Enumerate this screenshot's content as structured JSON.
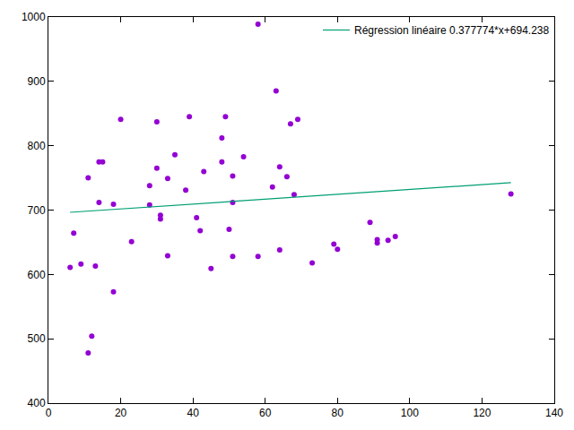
{
  "chart_data": {
    "type": "scatter",
    "xlim": [
      0,
      140
    ],
    "xticks": [
      0,
      20,
      40,
      60,
      80,
      100,
      120,
      140
    ],
    "ylim": [
      400,
      1000
    ],
    "yticks": [
      400,
      500,
      600,
      700,
      800,
      900,
      1000
    ],
    "grid": false,
    "legend": "top-right",
    "series": [
      {
        "type": "scatter",
        "marker": "circle",
        "color": "#9400d3",
        "x": [
          6,
          7,
          9,
          11,
          11,
          12,
          13,
          14,
          14,
          15,
          18,
          18,
          20,
          23,
          28,
          28,
          30,
          30,
          31,
          31,
          33,
          33,
          35,
          38,
          39,
          41,
          42,
          43,
          45,
          48,
          48,
          49,
          50,
          51,
          51,
          51,
          54,
          58,
          58,
          62,
          63,
          64,
          64,
          66,
          67,
          68,
          69,
          73,
          79,
          80,
          89,
          91,
          91,
          94,
          96,
          128
        ],
        "values": [
          611,
          664,
          616,
          750,
          478,
          504,
          613,
          712,
          775,
          775,
          709,
          573,
          841,
          651,
          738,
          708,
          765,
          837,
          692,
          686,
          629,
          749,
          786,
          731,
          845,
          688,
          668,
          760,
          609,
          812,
          775,
          845,
          670,
          753,
          712,
          628,
          783,
          989,
          628,
          736,
          885,
          767,
          638,
          752,
          834,
          724,
          841,
          618,
          647,
          639,
          681,
          654,
          649,
          653,
          659,
          725
        ]
      },
      {
        "type": "line",
        "line_style": "solid",
        "color": "#009e73",
        "name": "Régression linéaire 0.377774*x+694.238",
        "x": [
          6,
          128
        ],
        "values": [
          696.5,
          742.6
        ]
      }
    ]
  }
}
